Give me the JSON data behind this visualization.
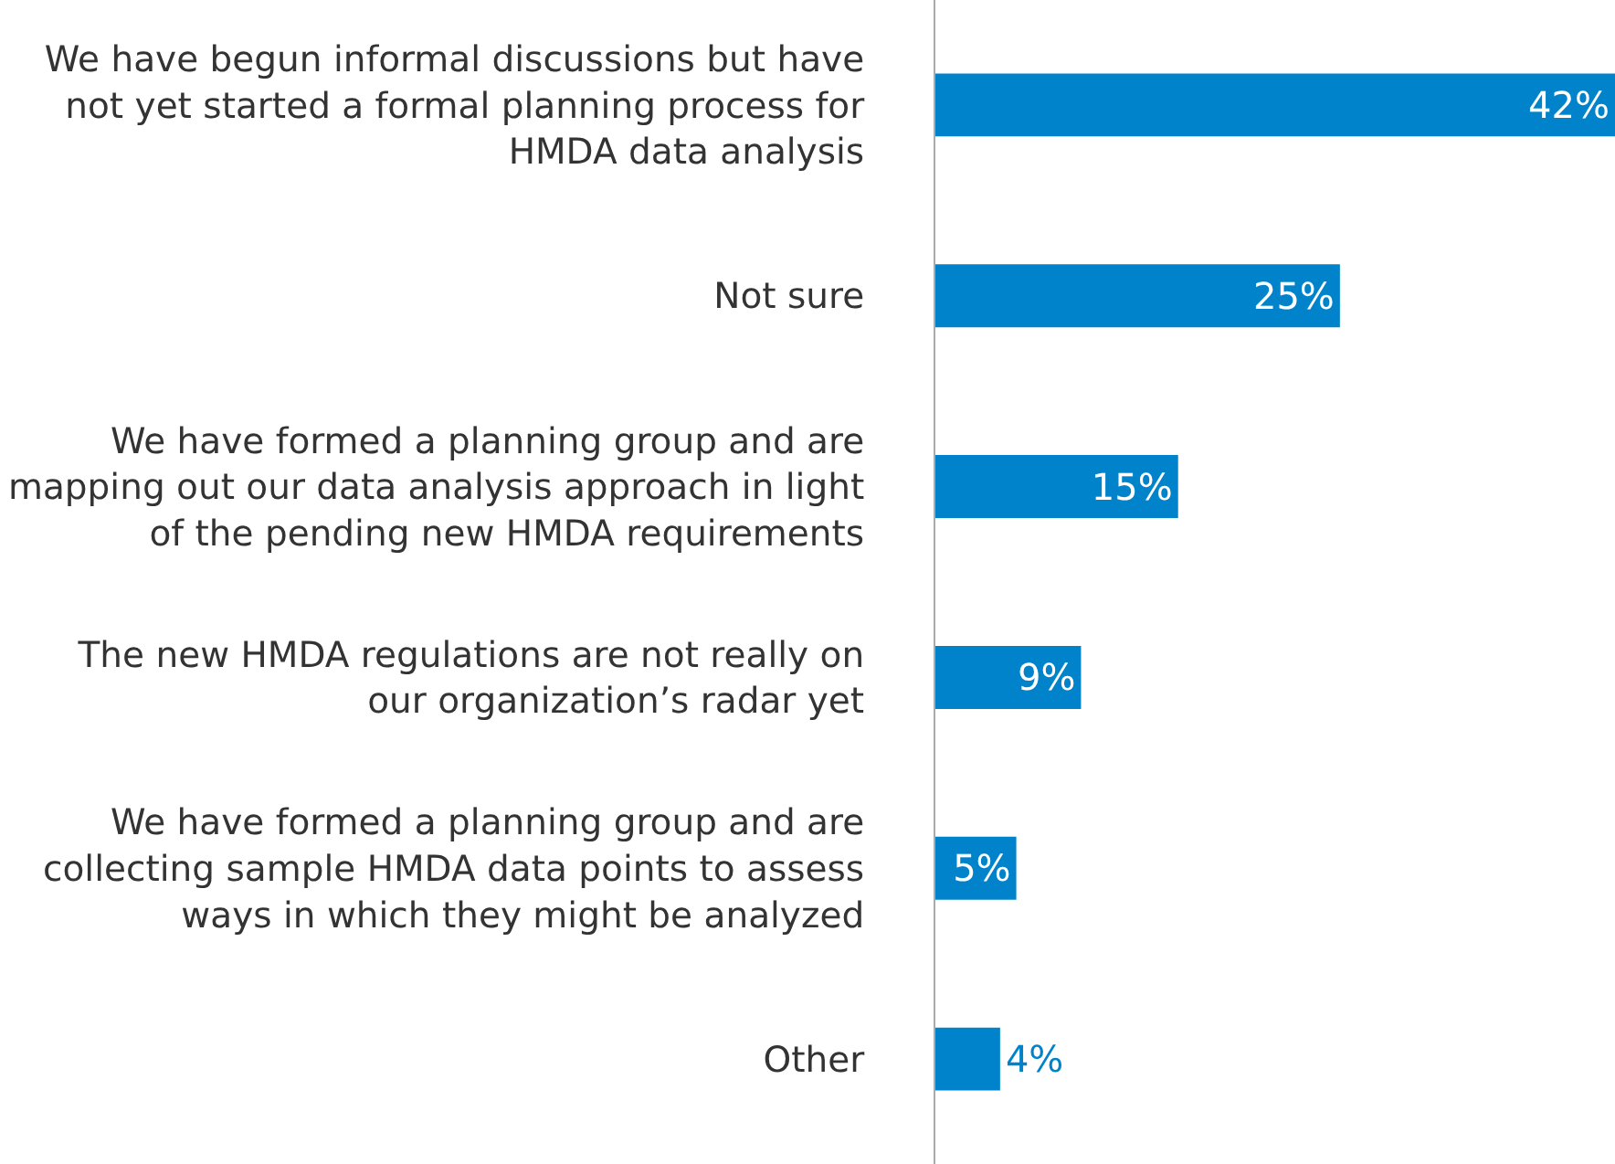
{
  "chart_data": {
    "type": "bar",
    "orientation": "horizontal",
    "categories": [
      "We have begun informal discussions but have\nnot yet started a formal planning process for\nHMDA data analysis",
      "Not sure",
      "We have formed a planning group and are\nmapping out our data analysis approach in light\nof the pending new HMDA requirements",
      "The new HMDA regulations are not really on\nour organization’s radar yet",
      "We have formed a planning group and are\ncollecting sample HMDA data points to assess\nways in which they might be analyzed",
      "Other"
    ],
    "values": [
      42,
      25,
      15,
      9,
      5,
      4
    ],
    "value_labels": [
      "42%",
      "25%",
      "15%",
      "9%",
      "5%",
      "4%"
    ],
    "color": "#0083ca",
    "grid": false,
    "legend": false
  }
}
